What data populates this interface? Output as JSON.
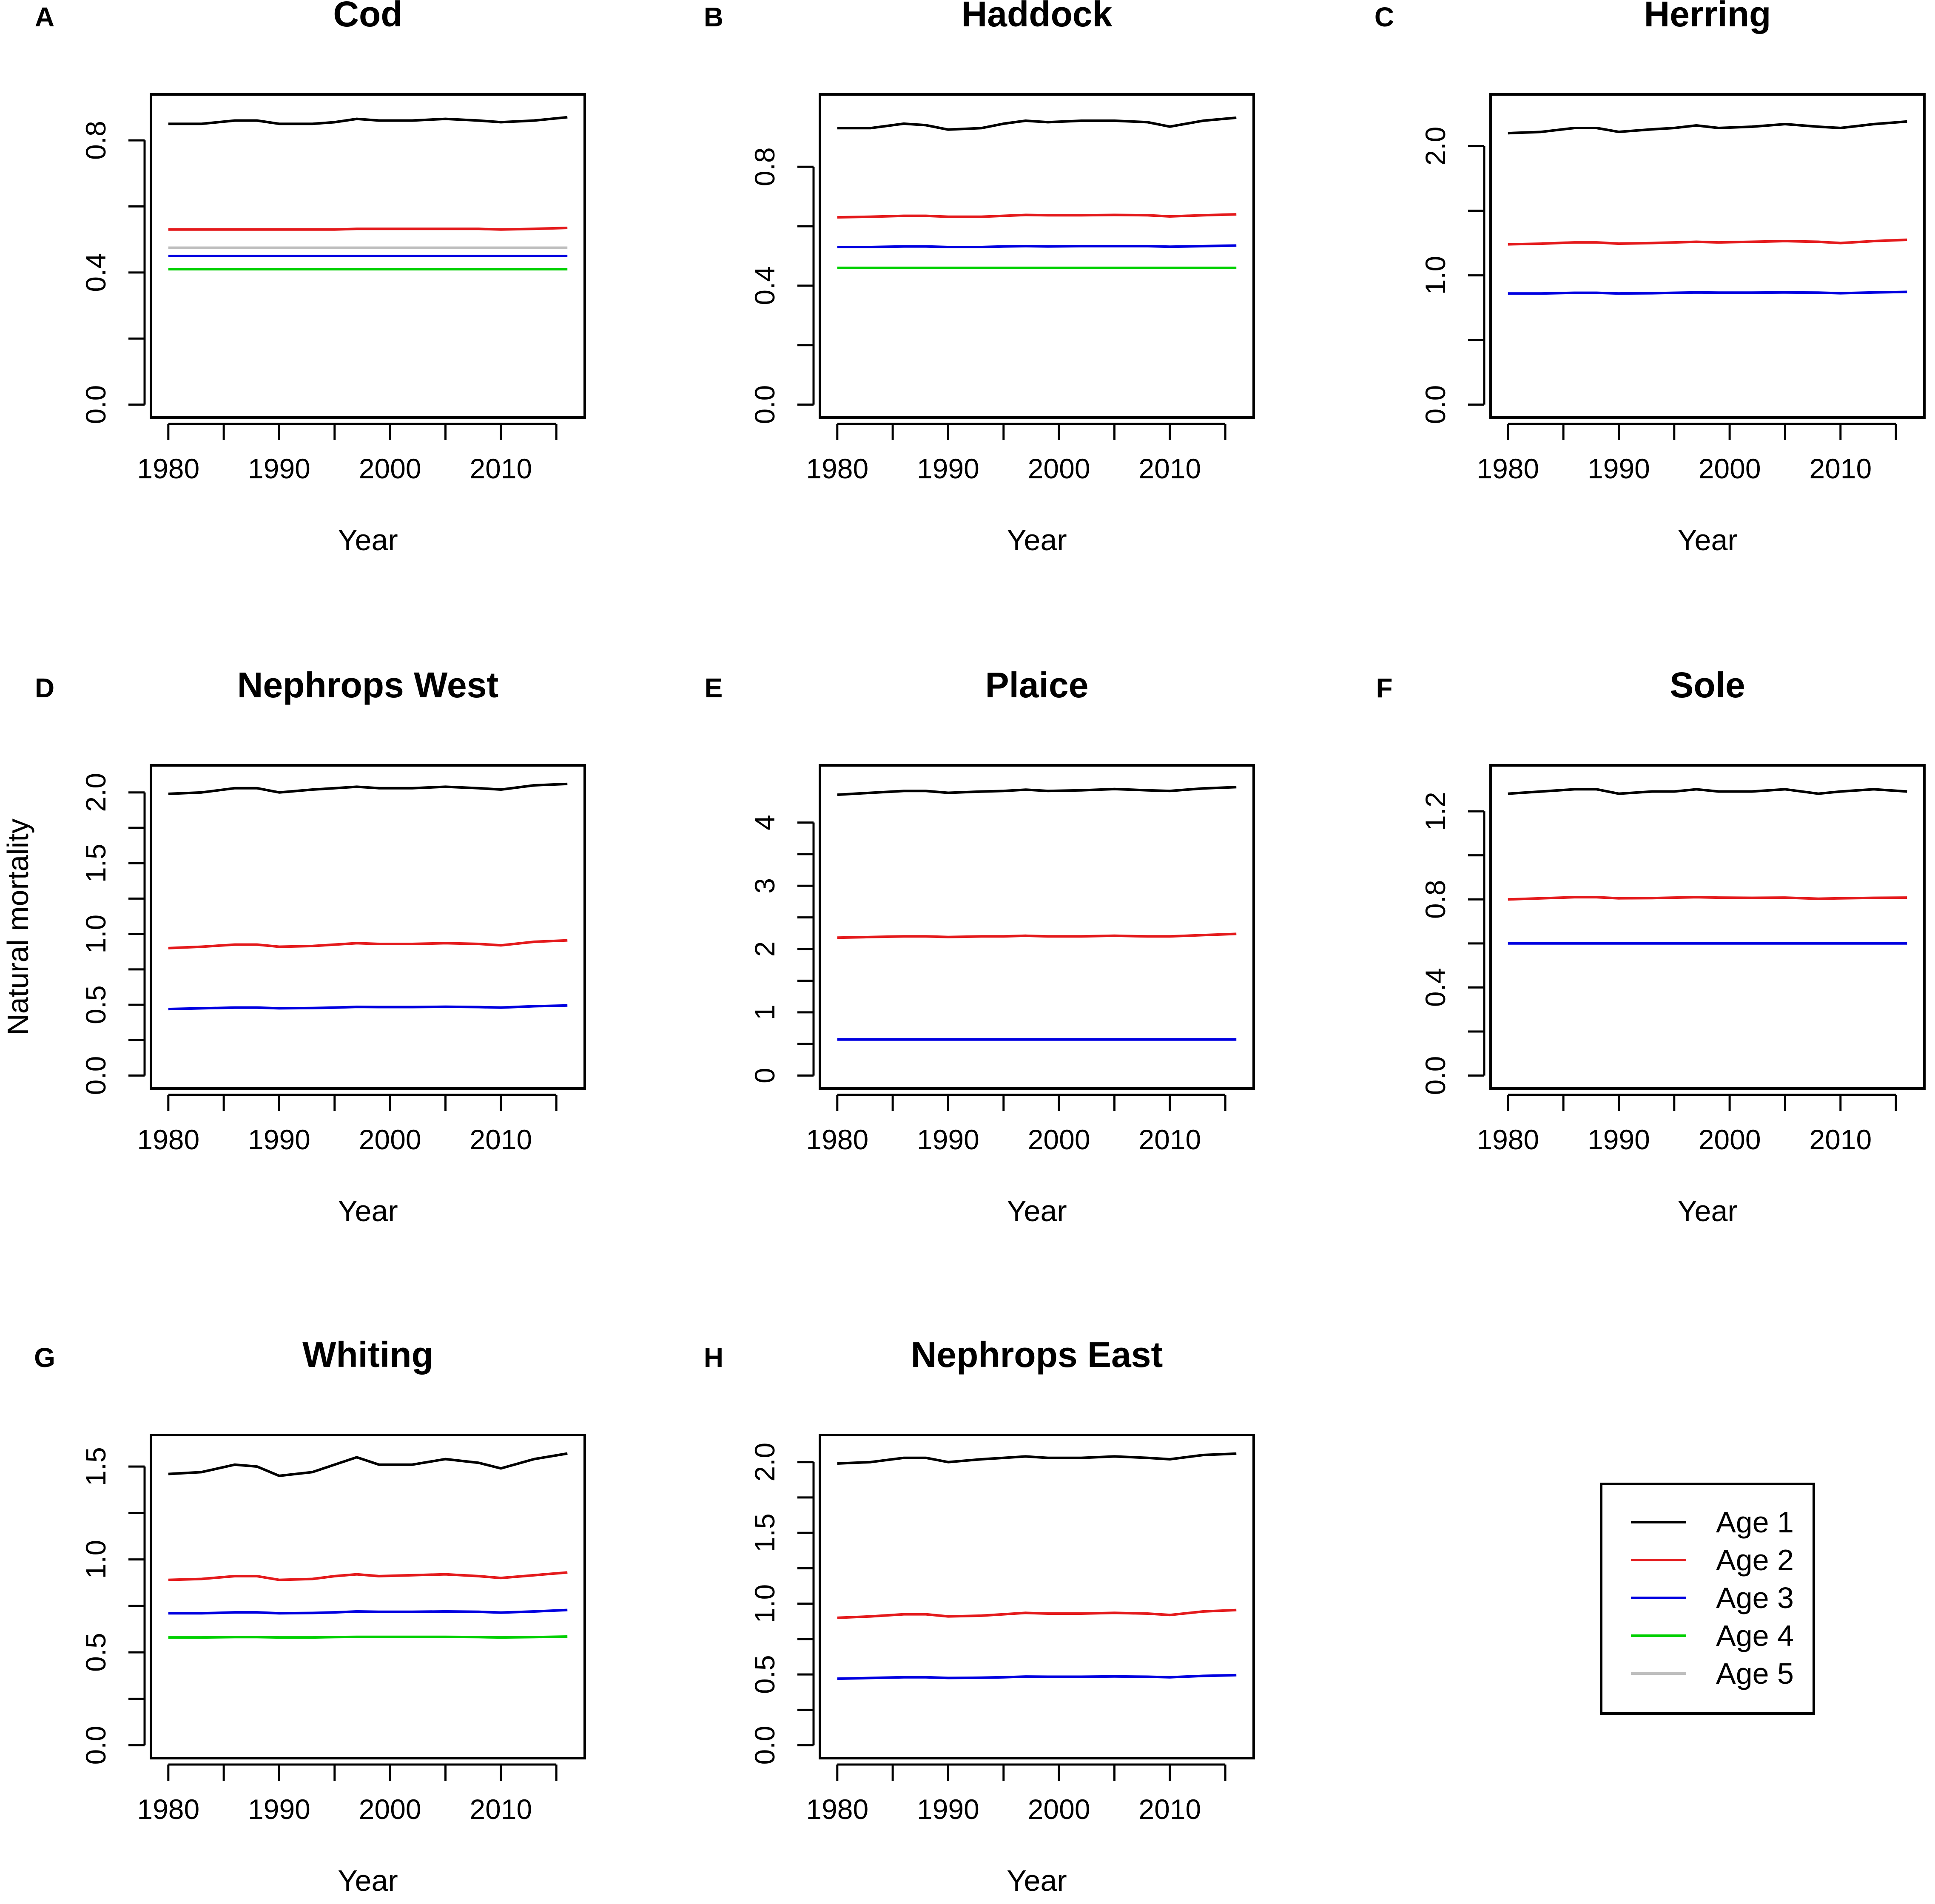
{
  "chart_data": [
    {
      "type": "line",
      "panel_label": "A",
      "title": "Cod",
      "xlabel": "Year",
      "ylabel": "",
      "xlim": [
        1980,
        2016
      ],
      "ylim": [
        0.0,
        0.9
      ],
      "xticks": [
        "1980",
        "1990",
        "2000",
        "2010"
      ],
      "yticks": [
        "0.0",
        "0.4",
        "0.8"
      ],
      "x": [
        1980,
        1983,
        1986,
        1988,
        1990,
        1993,
        1995,
        1997,
        1999,
        2002,
        2005,
        2008,
        2010,
        2013,
        2016
      ],
      "series": [
        {
          "name": "Age 1",
          "values": [
            0.85,
            0.85,
            0.86,
            0.86,
            0.85,
            0.85,
            0.855,
            0.865,
            0.86,
            0.86,
            0.865,
            0.86,
            0.855,
            0.86,
            0.87
          ]
        },
        {
          "name": "Age 2",
          "values": [
            0.53,
            0.53,
            0.53,
            0.53,
            0.53,
            0.53,
            0.53,
            0.532,
            0.532,
            0.532,
            0.532,
            0.532,
            0.53,
            0.532,
            0.535
          ]
        },
        {
          "name": "Age 3",
          "values": [
            0.45,
            0.45,
            0.45,
            0.45,
            0.45,
            0.45,
            0.45,
            0.45,
            0.45,
            0.45,
            0.45,
            0.45,
            0.45,
            0.45,
            0.45
          ]
        },
        {
          "name": "Age 4",
          "values": [
            0.41,
            0.41,
            0.41,
            0.41,
            0.41,
            0.41,
            0.41,
            0.41,
            0.41,
            0.41,
            0.41,
            0.41,
            0.41,
            0.41,
            0.41
          ]
        },
        {
          "name": "Age 5",
          "values": [
            0.475,
            0.475,
            0.475,
            0.475,
            0.475,
            0.475,
            0.475,
            0.475,
            0.475,
            0.475,
            0.475,
            0.475,
            0.475,
            0.475,
            0.475
          ]
        }
      ]
    },
    {
      "type": "line",
      "panel_label": "B",
      "title": "Haddock",
      "xlabel": "Year",
      "ylabel": "",
      "xlim": [
        1980,
        2016
      ],
      "ylim": [
        0.0,
        1.0
      ],
      "xticks": [
        "1980",
        "1990",
        "2000",
        "2010"
      ],
      "yticks": [
        "0.0",
        "0.4",
        "0.8"
      ],
      "x": [
        1980,
        1983,
        1986,
        1988,
        1990,
        1993,
        1995,
        1997,
        1999,
        2002,
        2005,
        2008,
        2010,
        2013,
        2016
      ],
      "series": [
        {
          "name": "Age 1",
          "values": [
            0.93,
            0.93,
            0.945,
            0.94,
            0.925,
            0.93,
            0.945,
            0.955,
            0.95,
            0.955,
            0.955,
            0.95,
            0.935,
            0.955,
            0.965
          ]
        },
        {
          "name": "Age 2",
          "values": [
            0.63,
            0.632,
            0.635,
            0.635,
            0.632,
            0.632,
            0.635,
            0.638,
            0.637,
            0.637,
            0.638,
            0.637,
            0.633,
            0.637,
            0.64
          ]
        },
        {
          "name": "Age 3",
          "values": [
            0.53,
            0.53,
            0.532,
            0.532,
            0.53,
            0.53,
            0.532,
            0.533,
            0.532,
            0.533,
            0.533,
            0.533,
            0.531,
            0.533,
            0.535
          ]
        },
        {
          "name": "Age 4",
          "values": [
            0.46,
            0.46,
            0.46,
            0.46,
            0.46,
            0.46,
            0.46,
            0.46,
            0.46,
            0.46,
            0.46,
            0.46,
            0.46,
            0.46,
            0.46
          ]
        }
      ]
    },
    {
      "type": "line",
      "panel_label": "C",
      "title": "Herring",
      "xlabel": "Year",
      "ylabel": "",
      "xlim": [
        1980,
        2016
      ],
      "ylim": [
        0.0,
        2.3
      ],
      "xticks": [
        "1980",
        "1990",
        "2000",
        "2010"
      ],
      "yticks": [
        "0.0",
        "1.0",
        "2.0"
      ],
      "x": [
        1980,
        1983,
        1986,
        1988,
        1990,
        1993,
        1995,
        1997,
        1999,
        2002,
        2005,
        2008,
        2010,
        2013,
        2016
      ],
      "series": [
        {
          "name": "Age 1",
          "values": [
            2.1,
            2.11,
            2.14,
            2.14,
            2.11,
            2.13,
            2.14,
            2.16,
            2.14,
            2.15,
            2.17,
            2.15,
            2.14,
            2.17,
            2.19
          ]
        },
        {
          "name": "Age 2",
          "values": [
            1.24,
            1.245,
            1.255,
            1.255,
            1.245,
            1.25,
            1.255,
            1.26,
            1.255,
            1.26,
            1.265,
            1.26,
            1.25,
            1.265,
            1.275
          ]
        },
        {
          "name": "Age 3",
          "values": [
            0.86,
            0.86,
            0.865,
            0.865,
            0.86,
            0.862,
            0.865,
            0.868,
            0.866,
            0.866,
            0.868,
            0.866,
            0.862,
            0.868,
            0.872
          ]
        }
      ]
    },
    {
      "type": "line",
      "panel_label": "D",
      "title": "Nephrops West",
      "xlabel": "Year",
      "ylabel": "Natural mortality",
      "xlim": [
        1980,
        2016
      ],
      "ylim": [
        0.0,
        2.1
      ],
      "xticks": [
        "1980",
        "1990",
        "2000",
        "2010"
      ],
      "yticks": [
        "0.0",
        "0.5",
        "1.0",
        "1.5",
        "2.0"
      ],
      "x": [
        1980,
        1983,
        1986,
        1988,
        1990,
        1993,
        1995,
        1997,
        1999,
        2002,
        2005,
        2008,
        2010,
        2013,
        2016
      ],
      "series": [
        {
          "name": "Age 1",
          "values": [
            1.99,
            2.0,
            2.03,
            2.03,
            2.0,
            2.02,
            2.03,
            2.04,
            2.03,
            2.03,
            2.04,
            2.03,
            2.02,
            2.05,
            2.06
          ]
        },
        {
          "name": "Age 2",
          "values": [
            0.9,
            0.91,
            0.925,
            0.925,
            0.91,
            0.915,
            0.925,
            0.935,
            0.93,
            0.93,
            0.935,
            0.93,
            0.92,
            0.945,
            0.955
          ]
        },
        {
          "name": "Age 3",
          "values": [
            0.47,
            0.475,
            0.48,
            0.48,
            0.475,
            0.477,
            0.48,
            0.485,
            0.484,
            0.484,
            0.486,
            0.484,
            0.48,
            0.49,
            0.495
          ]
        }
      ]
    },
    {
      "type": "line",
      "panel_label": "E",
      "title": "Plaice",
      "xlabel": "Year",
      "ylabel": "",
      "xlim": [
        1980,
        2016
      ],
      "ylim": [
        0.0,
        4.7
      ],
      "xticks": [
        "1980",
        "1990",
        "2000",
        "2010"
      ],
      "yticks": [
        "0",
        "1",
        "2",
        "3",
        "4"
      ],
      "x": [
        1980,
        1983,
        1986,
        1988,
        1990,
        1993,
        1995,
        1997,
        1999,
        2002,
        2005,
        2008,
        2010,
        2013,
        2016
      ],
      "series": [
        {
          "name": "Age 1",
          "values": [
            4.44,
            4.47,
            4.5,
            4.5,
            4.47,
            4.49,
            4.5,
            4.52,
            4.5,
            4.51,
            4.53,
            4.51,
            4.5,
            4.54,
            4.56
          ]
        },
        {
          "name": "Age 2",
          "values": [
            2.18,
            2.19,
            2.2,
            2.2,
            2.19,
            2.2,
            2.2,
            2.21,
            2.2,
            2.2,
            2.21,
            2.2,
            2.2,
            2.22,
            2.24
          ]
        },
        {
          "name": "Age 3",
          "values": [
            0.57,
            0.57,
            0.57,
            0.57,
            0.57,
            0.57,
            0.57,
            0.57,
            0.57,
            0.57,
            0.57,
            0.57,
            0.57,
            0.57,
            0.57
          ]
        }
      ]
    },
    {
      "type": "line",
      "panel_label": "F",
      "title": "Sole",
      "xlabel": "Year",
      "ylabel": "",
      "xlim": [
        1980,
        2016
      ],
      "ylim": [
        0.0,
        1.35
      ],
      "xticks": [
        "1980",
        "1990",
        "2000",
        "2010"
      ],
      "yticks": [
        "0.0",
        "0.4",
        "0.8",
        "1.2"
      ],
      "x": [
        1980,
        1983,
        1986,
        1988,
        1990,
        1993,
        1995,
        1997,
        1999,
        2002,
        2005,
        2008,
        2010,
        2013,
        2016
      ],
      "series": [
        {
          "name": "Age 1",
          "values": [
            1.28,
            1.29,
            1.3,
            1.3,
            1.28,
            1.29,
            1.29,
            1.3,
            1.29,
            1.29,
            1.3,
            1.28,
            1.29,
            1.3,
            1.29
          ]
        },
        {
          "name": "Age 2",
          "values": [
            0.8,
            0.805,
            0.81,
            0.81,
            0.805,
            0.806,
            0.808,
            0.81,
            0.808,
            0.807,
            0.808,
            0.803,
            0.805,
            0.807,
            0.808
          ]
        },
        {
          "name": "Age 3",
          "values": [
            0.6,
            0.6,
            0.6,
            0.6,
            0.6,
            0.6,
            0.6,
            0.6,
            0.6,
            0.6,
            0.6,
            0.6,
            0.6,
            0.6,
            0.6
          ]
        }
      ]
    },
    {
      "type": "line",
      "panel_label": "G",
      "title": "Whiting",
      "xlabel": "Year",
      "ylabel": "",
      "xlim": [
        1980,
        2016
      ],
      "ylim": [
        0.0,
        1.6
      ],
      "xticks": [
        "1980",
        "1990",
        "2000",
        "2010"
      ],
      "yticks": [
        "0.0",
        "0.5",
        "1.0",
        "1.5"
      ],
      "x": [
        1980,
        1983,
        1986,
        1988,
        1990,
        1993,
        1995,
        1997,
        1999,
        2002,
        2005,
        2008,
        2010,
        2013,
        2016
      ],
      "series": [
        {
          "name": "Age 1",
          "values": [
            1.46,
            1.47,
            1.51,
            1.5,
            1.45,
            1.47,
            1.51,
            1.55,
            1.51,
            1.51,
            1.54,
            1.52,
            1.49,
            1.54,
            1.57
          ]
        },
        {
          "name": "Age 2",
          "values": [
            0.89,
            0.895,
            0.91,
            0.91,
            0.89,
            0.895,
            0.91,
            0.92,
            0.91,
            0.915,
            0.92,
            0.91,
            0.9,
            0.915,
            0.93
          ]
        },
        {
          "name": "Age 3",
          "values": [
            0.71,
            0.71,
            0.715,
            0.715,
            0.71,
            0.712,
            0.715,
            0.72,
            0.718,
            0.718,
            0.72,
            0.718,
            0.714,
            0.72,
            0.728
          ]
        },
        {
          "name": "Age 4",
          "values": [
            0.58,
            0.58,
            0.582,
            0.582,
            0.58,
            0.58,
            0.582,
            0.583,
            0.583,
            0.583,
            0.583,
            0.582,
            0.58,
            0.582,
            0.585
          ]
        }
      ]
    },
    {
      "type": "line",
      "panel_label": "H",
      "title": "Nephrops East",
      "xlabel": "Year",
      "ylabel": "",
      "xlim": [
        1980,
        2016
      ],
      "ylim": [
        0.0,
        2.1
      ],
      "xticks": [
        "1980",
        "1990",
        "2000",
        "2010"
      ],
      "yticks": [
        "0.0",
        "0.5",
        "1.0",
        "1.5",
        "2.0"
      ],
      "x": [
        1980,
        1983,
        1986,
        1988,
        1990,
        1993,
        1995,
        1997,
        1999,
        2002,
        2005,
        2008,
        2010,
        2013,
        2016
      ],
      "series": [
        {
          "name": "Age 1",
          "values": [
            1.99,
            2.0,
            2.03,
            2.03,
            2.0,
            2.02,
            2.03,
            2.04,
            2.03,
            2.03,
            2.04,
            2.03,
            2.02,
            2.05,
            2.06
          ]
        },
        {
          "name": "Age 2",
          "values": [
            0.9,
            0.91,
            0.925,
            0.925,
            0.91,
            0.915,
            0.925,
            0.935,
            0.93,
            0.93,
            0.935,
            0.93,
            0.92,
            0.945,
            0.955
          ]
        },
        {
          "name": "Age 3",
          "values": [
            0.47,
            0.475,
            0.48,
            0.48,
            0.475,
            0.477,
            0.48,
            0.485,
            0.484,
            0.484,
            0.486,
            0.484,
            0.48,
            0.49,
            0.495
          ]
        }
      ]
    }
  ],
  "legend": {
    "position": "bottom-right",
    "items": [
      {
        "label": "Age 1",
        "color": "#000000"
      },
      {
        "label": "Age 2",
        "color": "#e41a1c"
      },
      {
        "label": "Age 3",
        "color": "#0000e0"
      },
      {
        "label": "Age 4",
        "color": "#00d000"
      },
      {
        "label": "Age 5",
        "color": "#bebebe"
      }
    ]
  }
}
